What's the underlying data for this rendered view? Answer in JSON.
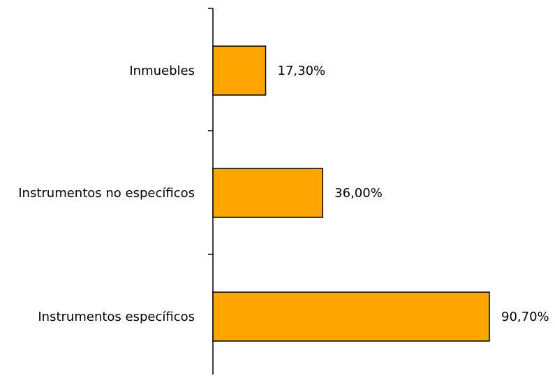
{
  "chart_data": {
    "type": "bar",
    "orientation": "horizontal",
    "categories": [
      "Inmuebles",
      "Instrumentos no específicos",
      "Instrumentos específicos"
    ],
    "values": [
      17.3,
      36.0,
      90.7
    ],
    "value_labels": [
      "17,30%",
      "36,00%",
      "90,70%"
    ],
    "xlim": [
      0,
      100
    ],
    "grid": false,
    "legend": "none",
    "bar_color": "#FFA500"
  }
}
